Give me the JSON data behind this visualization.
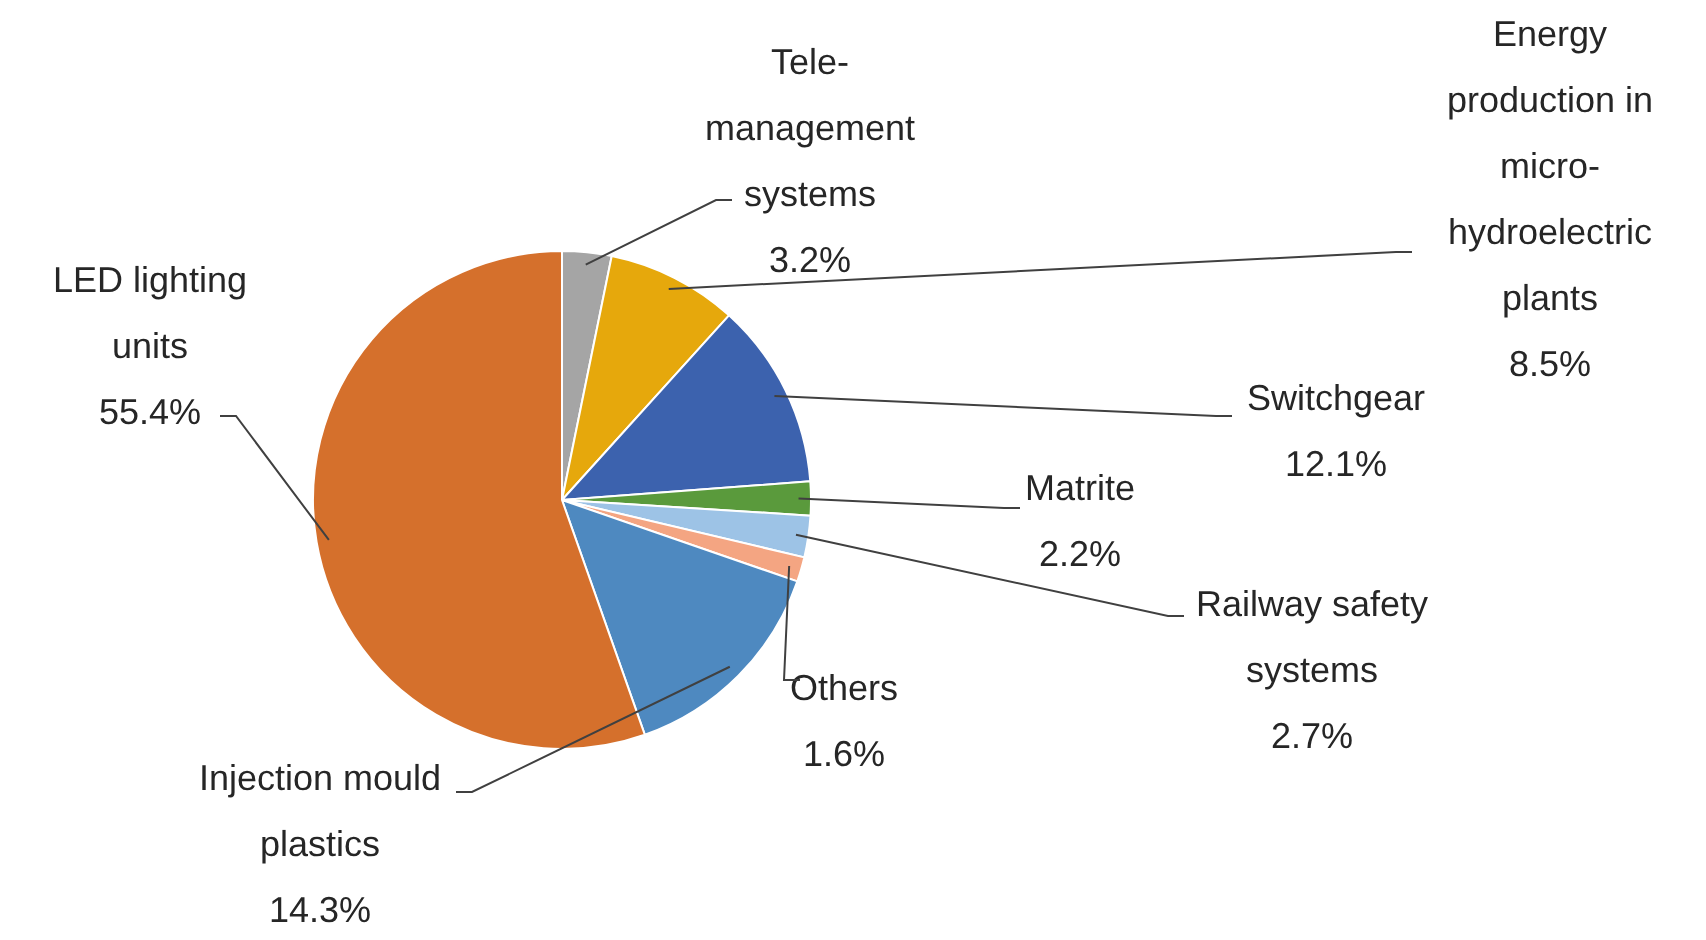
{
  "chart_data": {
    "type": "pie",
    "categories": [
      "Tele-management systems",
      "Energy production in micro-hydroelectric plants",
      "Switchgear",
      "Matrite",
      "Railway safety systems",
      "Others",
      "Injection mould plastics",
      "LED lighting units"
    ],
    "values": [
      3.2,
      8.5,
      12.1,
      2.2,
      2.7,
      1.6,
      14.3,
      55.4
    ],
    "colors": [
      "#a5a5a5",
      "#e6a80c",
      "#3c62ae",
      "#5a9a3c",
      "#9dc3e6",
      "#f4a582",
      "#4e89c0",
      "#d5702c"
    ],
    "value_labels": [
      "3.2%",
      "8.5%",
      "12.1%",
      "2.2%",
      "2.7%",
      "1.6%",
      "14.3%",
      "55.4%"
    ],
    "legend": false
  }
}
